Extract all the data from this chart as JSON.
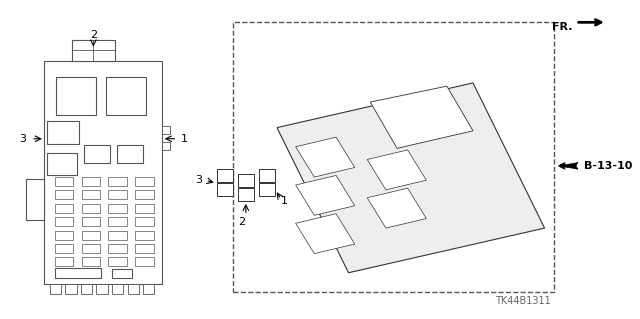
{
  "bg_color": "#ffffff",
  "fr_label": "FR.",
  "part_code": "TK44B1311",
  "b_label": "B-13-10",
  "gray": "#555555",
  "dgray": "#333333"
}
